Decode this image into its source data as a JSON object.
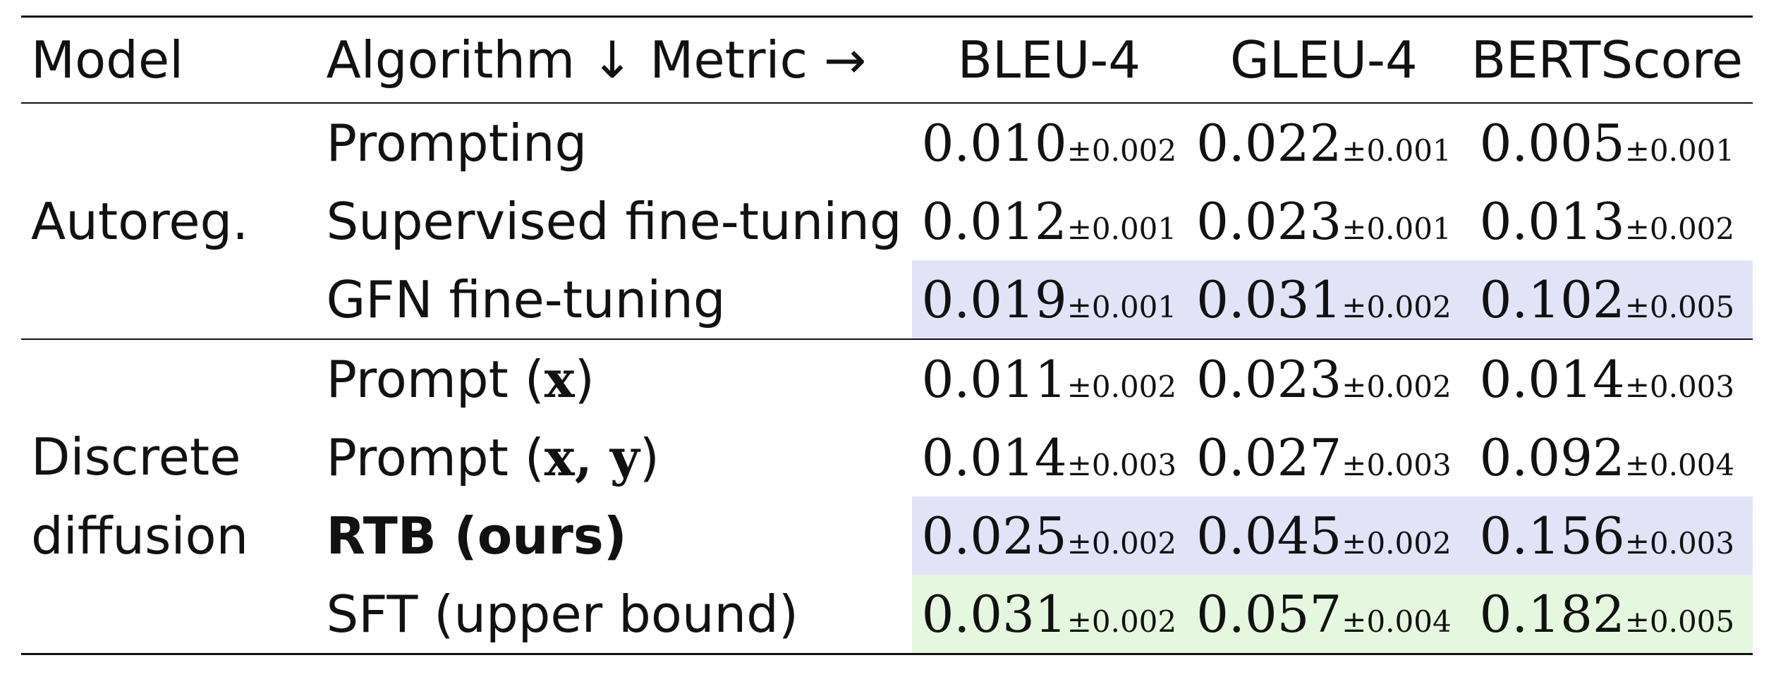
{
  "header": {
    "model": "Model",
    "algorithm": "Algorithm ↓ Metric →",
    "metrics": [
      "BLEU-4",
      "GLEU-4",
      "BERTScore"
    ]
  },
  "groups": [
    {
      "model": "Autoreg.",
      "rows": [
        {
          "algorithm": "Prompting",
          "bleu": "0.010",
          "bleu_std": "±0.002",
          "gleu": "0.022",
          "gleu_std": "±0.001",
          "bert": "0.005",
          "bert_std": "±0.001",
          "highlight": "none"
        },
        {
          "algorithm": "Supervised fine-tuning",
          "bleu": "0.012",
          "bleu_std": "±0.001",
          "gleu": "0.023",
          "gleu_std": "±0.001",
          "bert": "0.013",
          "bert_std": "±0.002",
          "highlight": "none"
        },
        {
          "algorithm": "GFN fine-tuning",
          "bleu": "0.019",
          "bleu_std": "±0.001",
          "gleu": "0.031",
          "gleu_std": "±0.002",
          "bert": "0.102",
          "bert_std": "±0.005",
          "highlight": "blue"
        }
      ]
    },
    {
      "model_line1": "Discrete",
      "model_line2": "diffusion",
      "rows": [
        {
          "algorithm_prefix": "Prompt (",
          "algorithm_math": "x",
          "algorithm_suffix": ")",
          "bleu": "0.011",
          "bleu_std": "±0.002",
          "gleu": "0.023",
          "gleu_std": "±0.002",
          "bert": "0.014",
          "bert_std": "±0.003",
          "highlight": "none"
        },
        {
          "algorithm_prefix": "Prompt (",
          "algorithm_math": "x, y",
          "algorithm_suffix": ")",
          "bleu": "0.014",
          "bleu_std": "±0.003",
          "gleu": "0.027",
          "gleu_std": "±0.003",
          "bert": "0.092",
          "bert_std": "±0.004",
          "highlight": "none"
        },
        {
          "algorithm": "RTB (ours)",
          "bleu": "0.025",
          "bleu_std": "±0.002",
          "gleu": "0.045",
          "gleu_std": "±0.002",
          "bert": "0.156",
          "bert_std": "±0.003",
          "highlight": "blue"
        },
        {
          "algorithm": "SFT (upper bound)",
          "bleu": "0.031",
          "bleu_std": "±0.002",
          "gleu": "0.057",
          "gleu_std": "±0.004",
          "bert": "0.182",
          "bert_std": "±0.005",
          "highlight": "green"
        }
      ]
    }
  ],
  "colors": {
    "highlight_blue": "#e3e3f8",
    "highlight_green": "#e6f7e0"
  }
}
